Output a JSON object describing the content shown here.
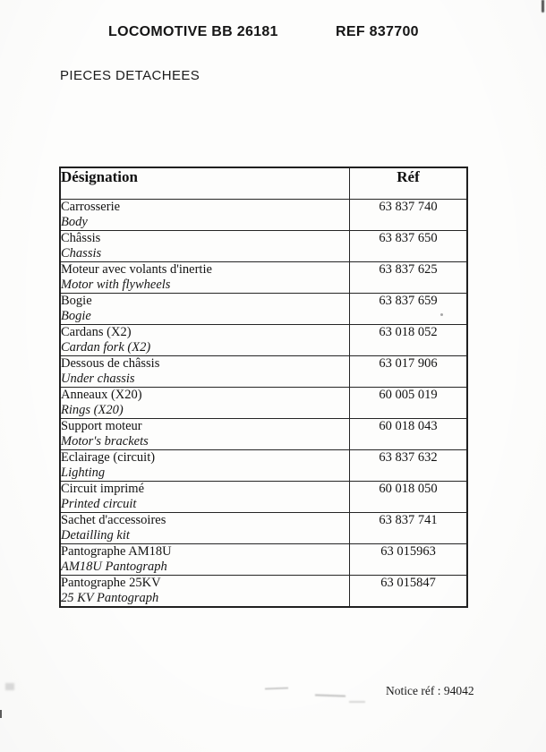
{
  "header": {
    "title": "LOCOMOTIVE BB 26181",
    "ref": "REF 837700",
    "subtitle": "PIECES DETACHEES"
  },
  "table": {
    "headers": {
      "designation": "Désignation",
      "ref": "Réf"
    },
    "rows": [
      {
        "fr": "Carrosserie",
        "en": "Body",
        "ref": "63 837 740"
      },
      {
        "fr": "Châssis",
        "en": "Chassis",
        "ref": "63 837 650"
      },
      {
        "fr": "Moteur avec volants d'inertie",
        "en": "Motor with flywheels",
        "ref": "63 837 625"
      },
      {
        "fr": "Bogie",
        "en": "Bogie",
        "ref": "63 837 659"
      },
      {
        "fr": "Cardans (X2)",
        "en": "Cardan fork (X2)",
        "ref": "63 018 052"
      },
      {
        "fr": "Dessous de châssis",
        "en": "Under chassis",
        "ref": "63 017 906"
      },
      {
        "fr": "Anneaux (X20)",
        "en": "Rings (X20)",
        "ref": "60 005 019"
      },
      {
        "fr": "Support moteur",
        "en": "Motor's brackets",
        "ref": "60 018 043"
      },
      {
        "fr": "Eclairage (circuit)",
        "en": "Lighting",
        "ref": "63 837 632"
      },
      {
        "fr": "Circuit imprimé",
        "en": "Printed circuit",
        "ref": "60 018 050"
      },
      {
        "fr": "Sachet d'accessoires",
        "en": "Detailling kit",
        "ref": "63 837 741"
      },
      {
        "fr": "Pantographe AM18U",
        "en": "AM18U Pantograph",
        "ref": "63 015963"
      },
      {
        "fr": "Pantographe 25KV",
        "en": "25 KV Pantograph",
        "ref": "63 015847"
      }
    ]
  },
  "footer": {
    "notice": "Notice réf : 94042"
  },
  "colors": {
    "paper": "#fdfdfc",
    "ink": "#151515",
    "table_border": "#252525"
  }
}
